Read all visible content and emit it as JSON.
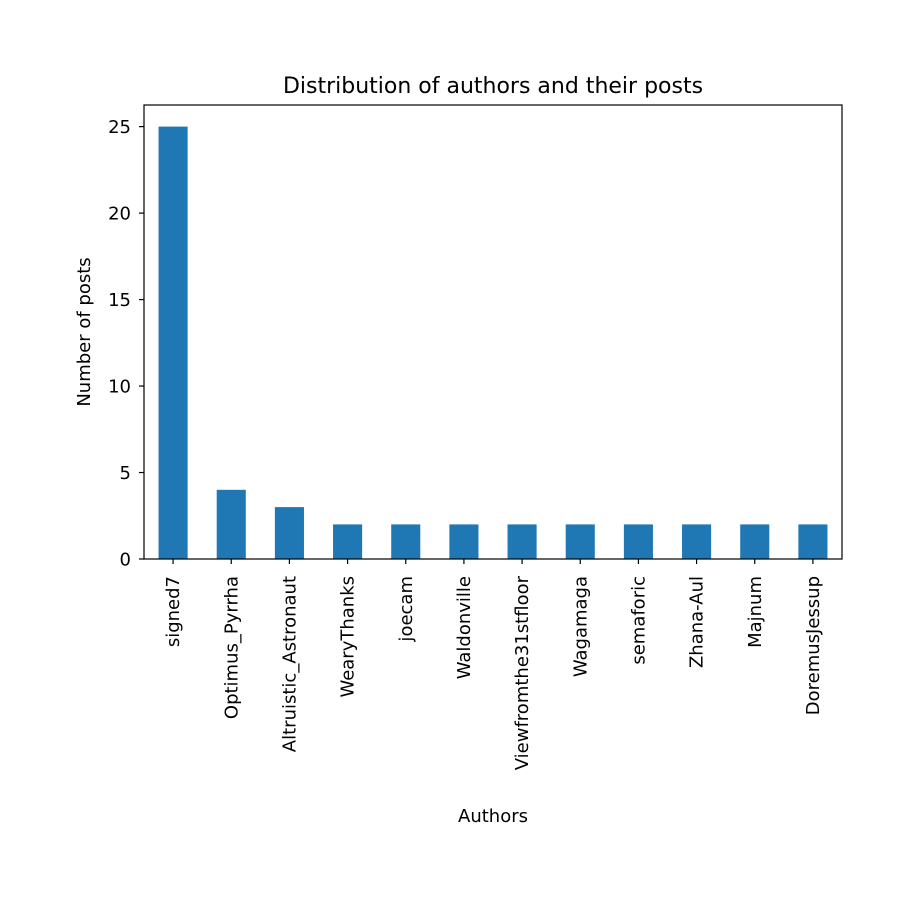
{
  "chart_data": {
    "type": "bar",
    "title": "Distribution of authors and their posts",
    "xlabel": "Authors",
    "ylabel": "Number of posts",
    "categories": [
      "signed7",
      "Optimus_Pyrrha",
      "Altruistic_Astronaut",
      "WearyThanks",
      "joecam",
      "Waldonville",
      "Viewfromthe31stfloor",
      "Wagamaga",
      "semaforic",
      "Zhana-Aul",
      "Majnum",
      "DoremusJessup"
    ],
    "values": [
      25,
      4,
      3,
      2,
      2,
      2,
      2,
      2,
      2,
      2,
      2,
      2
    ],
    "ylim": [
      0,
      26.25
    ],
    "yticks": [
      0,
      5,
      10,
      15,
      20,
      25
    ],
    "bar_color": "#1f77b4",
    "grid": false,
    "legend": "none"
  }
}
